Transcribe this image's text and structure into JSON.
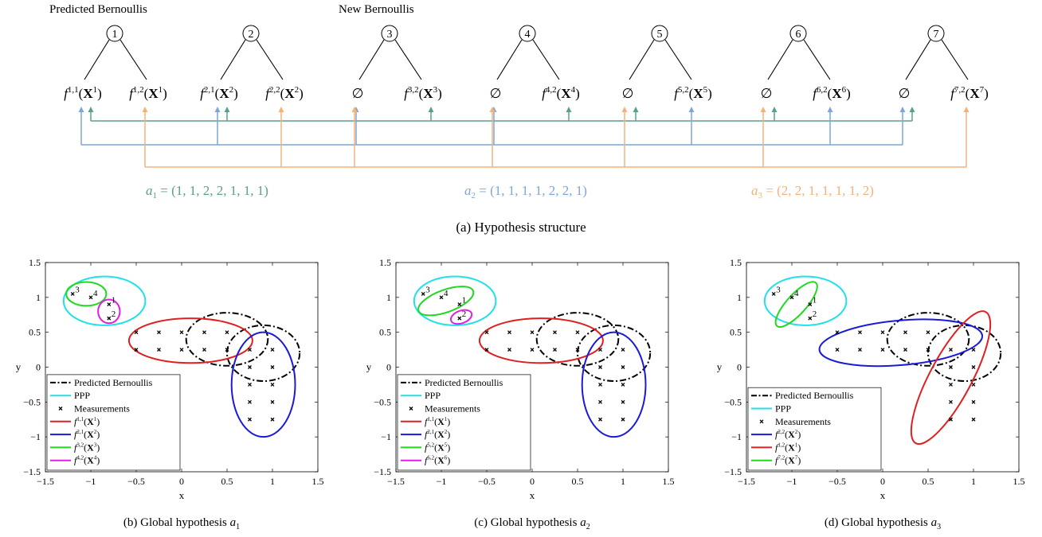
{
  "tree": {
    "label_predicted": "Predicted Bernoullis",
    "label_new": "New Bernoullis",
    "nodes": [
      "1",
      "2",
      "3",
      "4",
      "5",
      "6",
      "7"
    ],
    "leaves": [
      {
        "base": "f",
        "sup": "1,1",
        "arg": "X",
        "argsup": "1"
      },
      {
        "base": "f",
        "sup": "1,2",
        "arg": "X",
        "argsup": "1"
      },
      {
        "base": "f",
        "sup": "2,1",
        "arg": "X",
        "argsup": "2"
      },
      {
        "base": "f",
        "sup": "2,2",
        "arg": "X",
        "argsup": "2"
      },
      {
        "base": "∅"
      },
      {
        "base": "f",
        "sup": "3,2",
        "arg": "X",
        "argsup": "3"
      },
      {
        "base": "∅"
      },
      {
        "base": "f",
        "sup": "4,2",
        "arg": "X",
        "argsup": "4"
      },
      {
        "base": "∅"
      },
      {
        "base": "f",
        "sup": "5,2",
        "arg": "X",
        "argsup": "5"
      },
      {
        "base": "∅"
      },
      {
        "base": "f",
        "sup": "6,2",
        "arg": "X",
        "argsup": "6"
      },
      {
        "base": "∅"
      },
      {
        "base": "f",
        "sup": "7,2",
        "arg": "X",
        "argsup": "7"
      }
    ],
    "hypotheses": [
      {
        "name": "a",
        "sub": "1",
        "values": "(1, 1, 2, 2, 1, 1, 1)",
        "assignment": [
          1,
          1,
          2,
          2,
          1,
          1,
          1
        ],
        "color": "#5aa08a"
      },
      {
        "name": "a",
        "sub": "2",
        "values": "(1, 1, 1, 1, 2, 2, 1)",
        "assignment": [
          1,
          1,
          1,
          1,
          2,
          2,
          1
        ],
        "color": "#7ea6d8"
      },
      {
        "name": "a",
        "sub": "3",
        "values": "(2, 2, 1, 1, 1, 1, 2)",
        "assignment": [
          2,
          2,
          1,
          1,
          1,
          1,
          2
        ],
        "color": "#f3b27a"
      }
    ],
    "caption": "(a) Hypothesis structure"
  },
  "chart_data": [
    {
      "type": "scatter",
      "title": "",
      "xlabel": "x",
      "ylabel": "y",
      "xlim": [
        -1.5,
        1.5
      ],
      "ylim": [
        -1.5,
        1.5
      ],
      "xticks": [
        -1.5,
        -1,
        -0.5,
        0,
        0.5,
        1,
        1.5
      ],
      "yticks": [
        -1.5,
        -1,
        -0.5,
        0,
        0.5,
        1,
        1.5
      ],
      "xtick_labels": [
        "−1.5",
        "−1",
        "−0.5",
        "0",
        "0.5",
        "1",
        "1.5"
      ],
      "ytick_labels": [
        "−1.5",
        "−1",
        "−0.5",
        "0",
        "0.5",
        "1",
        "1.5"
      ],
      "legend_position": "bottom-left",
      "caption_pre": "(b) Global hypothesis ",
      "caption_var": "a",
      "caption_sub": "1",
      "measurements": [
        [
          -1.2,
          1.05
        ],
        [
          -1.0,
          1.0
        ],
        [
          -0.8,
          0.9
        ],
        [
          -0.8,
          0.7
        ],
        [
          -0.5,
          0.5
        ],
        [
          -0.25,
          0.5
        ],
        [
          0,
          0.5
        ],
        [
          0.25,
          0.5
        ],
        [
          0.5,
          0.5
        ],
        [
          -0.5,
          0.25
        ],
        [
          -0.25,
          0.25
        ],
        [
          0,
          0.25
        ],
        [
          0.25,
          0.25
        ],
        [
          0.5,
          0.25
        ],
        [
          0.75,
          0.25
        ],
        [
          1.0,
          0.25
        ],
        [
          0.75,
          0
        ],
        [
          1.0,
          0
        ],
        [
          0.75,
          -0.25
        ],
        [
          1.0,
          -0.25
        ],
        [
          0.75,
          -0.5
        ],
        [
          1.0,
          -0.5
        ],
        [
          0.75,
          -0.75
        ],
        [
          1.0,
          -0.75
        ]
      ],
      "measurement_labels": [
        {
          "text": "3",
          "x": -1.2,
          "y": 1.05
        },
        {
          "text": "4",
          "x": -1.0,
          "y": 1.0
        },
        {
          "text": "1",
          "x": -0.8,
          "y": 0.9
        },
        {
          "text": "2",
          "x": -0.8,
          "y": 0.7
        }
      ],
      "ellipses": [
        {
          "series": "Predicted Bernoullis",
          "color": "#000000",
          "dash": "dashdot",
          "cx": 0.5,
          "cy": 0.4,
          "rx": 0.45,
          "ry": 0.38,
          "angle": 0
        },
        {
          "series": "Predicted Bernoullis",
          "color": "#000000",
          "dash": "dashdot",
          "cx": 0.9,
          "cy": 0.2,
          "rx": 0.4,
          "ry": 0.4,
          "angle": 0
        },
        {
          "series": "PPP",
          "color": "#22e0e8",
          "dash": "solid",
          "cx": -0.85,
          "cy": 0.95,
          "rx": 0.45,
          "ry": 0.35,
          "angle": 0
        },
        {
          "series": "f11",
          "color": "#e02020",
          "dash": "solid",
          "cx": 0.1,
          "cy": 0.38,
          "rx": 0.68,
          "ry": 0.32,
          "angle": 0
        },
        {
          "series": "f21",
          "color": "#1a1ad8",
          "dash": "solid",
          "cx": 0.9,
          "cy": -0.25,
          "rx": 0.35,
          "ry": 0.75,
          "angle": 0
        },
        {
          "series": "f32",
          "color": "#20d820",
          "dash": "solid",
          "cx": -1.05,
          "cy": 1.05,
          "rx": 0.22,
          "ry": 0.17,
          "angle": 0
        },
        {
          "series": "f42",
          "color": "#e020e0",
          "dash": "solid",
          "cx": -0.8,
          "cy": 0.8,
          "rx": 0.12,
          "ry": 0.17,
          "angle": 0
        }
      ],
      "legend": [
        {
          "kind": "dashdot",
          "color": "#000000",
          "text": "Predicted Bernoullis"
        },
        {
          "kind": "line",
          "color": "#22e0e8",
          "text": "PPP"
        },
        {
          "kind": "marker",
          "color": "#000000",
          "text": "Measurements"
        },
        {
          "kind": "line",
          "color": "#e02020",
          "base": "f",
          "sup": "1,1",
          "arg": "X",
          "argsup": "1"
        },
        {
          "kind": "line",
          "color": "#1a1ad8",
          "base": "f",
          "sup": "2,1",
          "arg": "X",
          "argsup": "2"
        },
        {
          "kind": "line",
          "color": "#20d820",
          "base": "f",
          "sup": "3,2",
          "arg": "X",
          "argsup": "3"
        },
        {
          "kind": "line",
          "color": "#e020e0",
          "base": "f",
          "sup": "4,2",
          "arg": "X",
          "argsup": "4"
        }
      ]
    },
    {
      "type": "scatter",
      "title": "",
      "xlabel": "x",
      "ylabel": "y",
      "xlim": [
        -1.5,
        1.5
      ],
      "ylim": [
        -1.5,
        1.5
      ],
      "xticks": [
        -1.5,
        -1,
        -0.5,
        0,
        0.5,
        1,
        1.5
      ],
      "yticks": [
        -1.5,
        -1,
        -0.5,
        0,
        0.5,
        1,
        1.5
      ],
      "xtick_labels": [
        "−1.5",
        "−1",
        "−0.5",
        "0",
        "0.5",
        "1",
        "1.5"
      ],
      "ytick_labels": [
        "−1.5",
        "−1",
        "−0.5",
        "0",
        "0.5",
        "1",
        "1.5"
      ],
      "legend_position": "bottom-left",
      "caption_pre": "(c) Global hypothesis ",
      "caption_var": "a",
      "caption_sub": "2",
      "measurements": [
        [
          -1.2,
          1.05
        ],
        [
          -1.0,
          1.0
        ],
        [
          -0.8,
          0.9
        ],
        [
          -0.8,
          0.7
        ],
        [
          -0.5,
          0.5
        ],
        [
          -0.25,
          0.5
        ],
        [
          0,
          0.5
        ],
        [
          0.25,
          0.5
        ],
        [
          0.5,
          0.5
        ],
        [
          -0.5,
          0.25
        ],
        [
          -0.25,
          0.25
        ],
        [
          0,
          0.25
        ],
        [
          0.25,
          0.25
        ],
        [
          0.5,
          0.25
        ],
        [
          0.75,
          0.25
        ],
        [
          1.0,
          0.25
        ],
        [
          0.75,
          0
        ],
        [
          1.0,
          0
        ],
        [
          0.75,
          -0.25
        ],
        [
          1.0,
          -0.25
        ],
        [
          0.75,
          -0.5
        ],
        [
          1.0,
          -0.5
        ],
        [
          0.75,
          -0.75
        ],
        [
          1.0,
          -0.75
        ]
      ],
      "measurement_labels": [
        {
          "text": "3",
          "x": -1.2,
          "y": 1.05
        },
        {
          "text": "4",
          "x": -1.0,
          "y": 1.0
        },
        {
          "text": "1",
          "x": -0.8,
          "y": 0.9
        },
        {
          "text": "2",
          "x": -0.8,
          "y": 0.7
        }
      ],
      "ellipses": [
        {
          "series": "Predicted Bernoullis",
          "color": "#000000",
          "dash": "dashdot",
          "cx": 0.5,
          "cy": 0.4,
          "rx": 0.45,
          "ry": 0.38,
          "angle": 0
        },
        {
          "series": "Predicted Bernoullis",
          "color": "#000000",
          "dash": "dashdot",
          "cx": 0.9,
          "cy": 0.2,
          "rx": 0.4,
          "ry": 0.4,
          "angle": 0
        },
        {
          "series": "PPP",
          "color": "#22e0e8",
          "dash": "solid",
          "cx": -0.85,
          "cy": 0.95,
          "rx": 0.45,
          "ry": 0.35,
          "angle": 0
        },
        {
          "series": "f11",
          "color": "#e02020",
          "dash": "solid",
          "cx": 0.1,
          "cy": 0.38,
          "rx": 0.68,
          "ry": 0.32,
          "angle": 0
        },
        {
          "series": "f21",
          "color": "#1a1ad8",
          "dash": "solid",
          "cx": 0.9,
          "cy": -0.25,
          "rx": 0.35,
          "ry": 0.75,
          "angle": 0
        },
        {
          "series": "f52",
          "color": "#20d820",
          "dash": "solid",
          "cx": -0.95,
          "cy": 0.95,
          "rx": 0.32,
          "ry": 0.16,
          "angle": -20
        },
        {
          "series": "f62",
          "color": "#e020e0",
          "dash": "solid",
          "cx": -0.78,
          "cy": 0.72,
          "rx": 0.12,
          "ry": 0.09,
          "angle": -20
        }
      ],
      "legend": [
        {
          "kind": "dashdot",
          "color": "#000000",
          "text": "Predicted Bernoullis"
        },
        {
          "kind": "line",
          "color": "#22e0e8",
          "text": "PPP"
        },
        {
          "kind": "marker",
          "color": "#000000",
          "text": "Measurements"
        },
        {
          "kind": "line",
          "color": "#e02020",
          "base": "f",
          "sup": "1,1",
          "arg": "X",
          "argsup": "1"
        },
        {
          "kind": "line",
          "color": "#1a1ad8",
          "base": "f",
          "sup": "2,1",
          "arg": "X",
          "argsup": "2"
        },
        {
          "kind": "line",
          "color": "#20d820",
          "base": "f",
          "sup": "5,2",
          "arg": "X",
          "argsup": "5"
        },
        {
          "kind": "line",
          "color": "#e020e0",
          "base": "f",
          "sup": "6,2",
          "arg": "X",
          "argsup": "6"
        }
      ]
    },
    {
      "type": "scatter",
      "title": "",
      "xlabel": "x",
      "ylabel": "y",
      "xlim": [
        -1.5,
        1.5
      ],
      "ylim": [
        -1.5,
        1.5
      ],
      "xticks": [
        -1.5,
        -1,
        -0.5,
        0,
        0.5,
        1,
        1.5
      ],
      "yticks": [
        -1.5,
        -1,
        -0.5,
        0,
        0.5,
        1,
        1.5
      ],
      "xtick_labels": [
        "−1.5",
        "−1",
        "−0.5",
        "0",
        "0.5",
        "1",
        "1.5"
      ],
      "ytick_labels": [
        "−1.5",
        "−1",
        "−0.5",
        "0",
        "0.5",
        "1",
        "1.5"
      ],
      "legend_position": "bottom-left",
      "caption_pre": "(d) Global hypothesis ",
      "caption_var": "a",
      "caption_sub": "3",
      "measurements": [
        [
          -1.2,
          1.05
        ],
        [
          -1.0,
          1.0
        ],
        [
          -0.8,
          0.9
        ],
        [
          -0.8,
          0.7
        ],
        [
          -0.5,
          0.5
        ],
        [
          -0.25,
          0.5
        ],
        [
          0,
          0.5
        ],
        [
          0.25,
          0.5
        ],
        [
          0.5,
          0.5
        ],
        [
          -0.5,
          0.25
        ],
        [
          -0.25,
          0.25
        ],
        [
          0,
          0.25
        ],
        [
          0.25,
          0.25
        ],
        [
          0.5,
          0.25
        ],
        [
          0.75,
          0.25
        ],
        [
          1.0,
          0.25
        ],
        [
          0.75,
          0
        ],
        [
          1.0,
          0
        ],
        [
          0.75,
          -0.25
        ],
        [
          1.0,
          -0.25
        ],
        [
          0.75,
          -0.5
        ],
        [
          1.0,
          -0.5
        ],
        [
          0.75,
          -0.75
        ],
        [
          1.0,
          -0.75
        ]
      ],
      "measurement_labels": [
        {
          "text": "3",
          "x": -1.2,
          "y": 1.05
        },
        {
          "text": "4",
          "x": -1.0,
          "y": 1.0
        },
        {
          "text": "1",
          "x": -0.8,
          "y": 0.9
        },
        {
          "text": "2",
          "x": -0.8,
          "y": 0.7
        }
      ],
      "ellipses": [
        {
          "series": "Predicted Bernoullis",
          "color": "#000000",
          "dash": "dashdot",
          "cx": 0.5,
          "cy": 0.4,
          "rx": 0.45,
          "ry": 0.38,
          "angle": 0
        },
        {
          "series": "Predicted Bernoullis",
          "color": "#000000",
          "dash": "dashdot",
          "cx": 0.9,
          "cy": 0.2,
          "rx": 0.4,
          "ry": 0.4,
          "angle": 0
        },
        {
          "series": "PPP",
          "color": "#22e0e8",
          "dash": "solid",
          "cx": -0.85,
          "cy": 0.95,
          "rx": 0.45,
          "ry": 0.35,
          "angle": 0
        },
        {
          "series": "f22",
          "color": "#1a1ad8",
          "dash": "solid",
          "cx": 0.2,
          "cy": 0.35,
          "rx": 0.9,
          "ry": 0.32,
          "angle": -5
        },
        {
          "series": "f12",
          "color": "#e02020",
          "dash": "solid",
          "cx": 0.75,
          "cy": -0.15,
          "rx": 0.82,
          "ry": 0.3,
          "angle": -62
        },
        {
          "series": "f72",
          "color": "#20d820",
          "dash": "solid",
          "cx": -0.95,
          "cy": 0.9,
          "rx": 0.32,
          "ry": 0.14,
          "angle": -48
        }
      ],
      "legend": [
        {
          "kind": "dashdot",
          "color": "#000000",
          "text": "Predicted Bernoullis"
        },
        {
          "kind": "line",
          "color": "#22e0e8",
          "text": "PPP"
        },
        {
          "kind": "marker",
          "color": "#000000",
          "text": "Measurements"
        },
        {
          "kind": "line",
          "color": "#1a1ad8",
          "base": "f",
          "sup": "2,2",
          "arg": "X",
          "argsup": "2"
        },
        {
          "kind": "line",
          "color": "#e02020",
          "base": "f",
          "sup": "1,2",
          "arg": "X",
          "argsup": "1"
        },
        {
          "kind": "line",
          "color": "#20d820",
          "base": "f",
          "sup": "7,2",
          "arg": "X",
          "argsup": "7"
        }
      ]
    }
  ]
}
